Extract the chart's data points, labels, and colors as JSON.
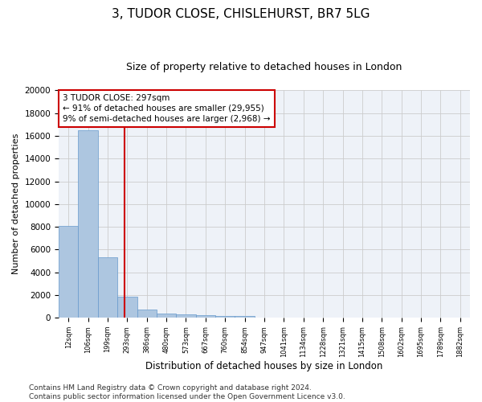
{
  "title1": "3, TUDOR CLOSE, CHISLEHURST, BR7 5LG",
  "title2": "Size of property relative to detached houses in London",
  "xlabel": "Distribution of detached houses by size in London",
  "ylabel": "Number of detached properties",
  "categories": [
    "12sqm",
    "106sqm",
    "199sqm",
    "293sqm",
    "386sqm",
    "480sqm",
    "573sqm",
    "667sqm",
    "760sqm",
    "854sqm",
    "947sqm",
    "1041sqm",
    "1134sqm",
    "1228sqm",
    "1321sqm",
    "1415sqm",
    "1508sqm",
    "1602sqm",
    "1695sqm",
    "1789sqm",
    "1882sqm"
  ],
  "values": [
    8100,
    16500,
    5300,
    1850,
    700,
    350,
    275,
    200,
    175,
    155,
    0,
    0,
    0,
    0,
    0,
    0,
    0,
    0,
    0,
    0,
    0
  ],
  "bar_color": "#adc6e0",
  "bar_edge_color": "#6699cc",
  "vline_x": 2.85,
  "vline_color": "#cc0000",
  "annotation_text": "3 TUDOR CLOSE: 297sqm\n← 91% of detached houses are smaller (29,955)\n9% of semi-detached houses are larger (2,968) →",
  "annotation_box_color": "#ffffff",
  "annotation_box_edge": "#cc0000",
  "ylim": [
    0,
    20000
  ],
  "yticks": [
    0,
    2000,
    4000,
    6000,
    8000,
    10000,
    12000,
    14000,
    16000,
    18000,
    20000
  ],
  "grid_color": "#cccccc",
  "bg_color": "#eef2f8",
  "footer": "Contains HM Land Registry data © Crown copyright and database right 2024.\nContains public sector information licensed under the Open Government Licence v3.0.",
  "title1_fontsize": 11,
  "title2_fontsize": 9,
  "annotation_fontsize": 7.5,
  "footer_fontsize": 6.5,
  "ylabel_fontsize": 8,
  "xlabel_fontsize": 8.5
}
